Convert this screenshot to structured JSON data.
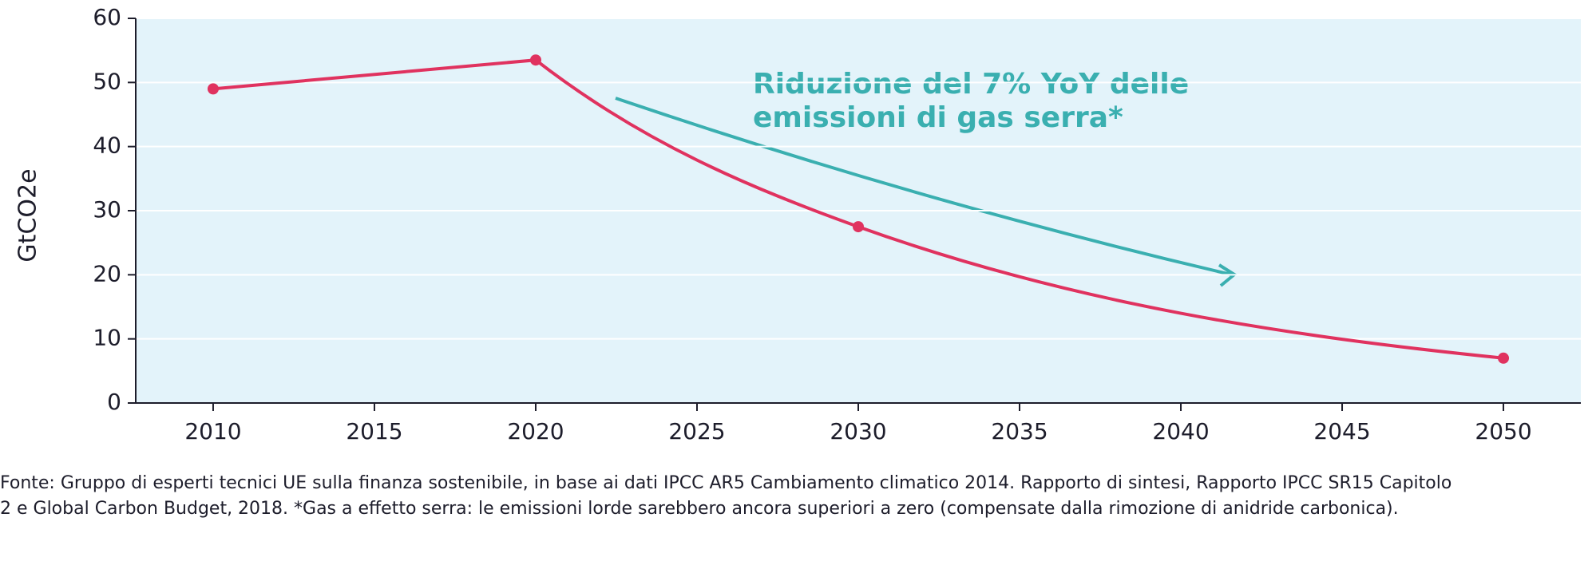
{
  "chart_data": {
    "type": "line",
    "x": [
      2010,
      2020,
      2030,
      2050
    ],
    "series": [
      {
        "name": "GtCO2e",
        "color": "#e0325f",
        "values": [
          49,
          53.5,
          27.5,
          7
        ]
      }
    ],
    "xlim": [
      2007.6,
      2052.4
    ],
    "xticks": [
      2010,
      2015,
      2020,
      2025,
      2030,
      2035,
      2040,
      2045,
      2050
    ],
    "ylim": [
      0,
      60
    ],
    "yticks": [
      0,
      10,
      20,
      30,
      40,
      50,
      60
    ],
    "ylabel": "GtCO2e",
    "grid": true,
    "annotation": [
      "Riduzione del 7% YoY delle",
      "emissioni di gas serra*"
    ],
    "annotation_color": "#3aafb0",
    "footnote": [
      "Fonte: Gruppo di esperti tecnici UE sulla finanza sostenibile, in base ai dati IPCC AR5 Cambiamento climatico 2014. Rapporto di sintesi, Rapporto IPCC SR15 Capitolo",
      "2 e Global Carbon Budget, 2018. *Gas a effetto serra: le emissioni lorde sarebbero ancora superiori a zero (compensate dalla rimozione di anidride carbonica)."
    ]
  }
}
